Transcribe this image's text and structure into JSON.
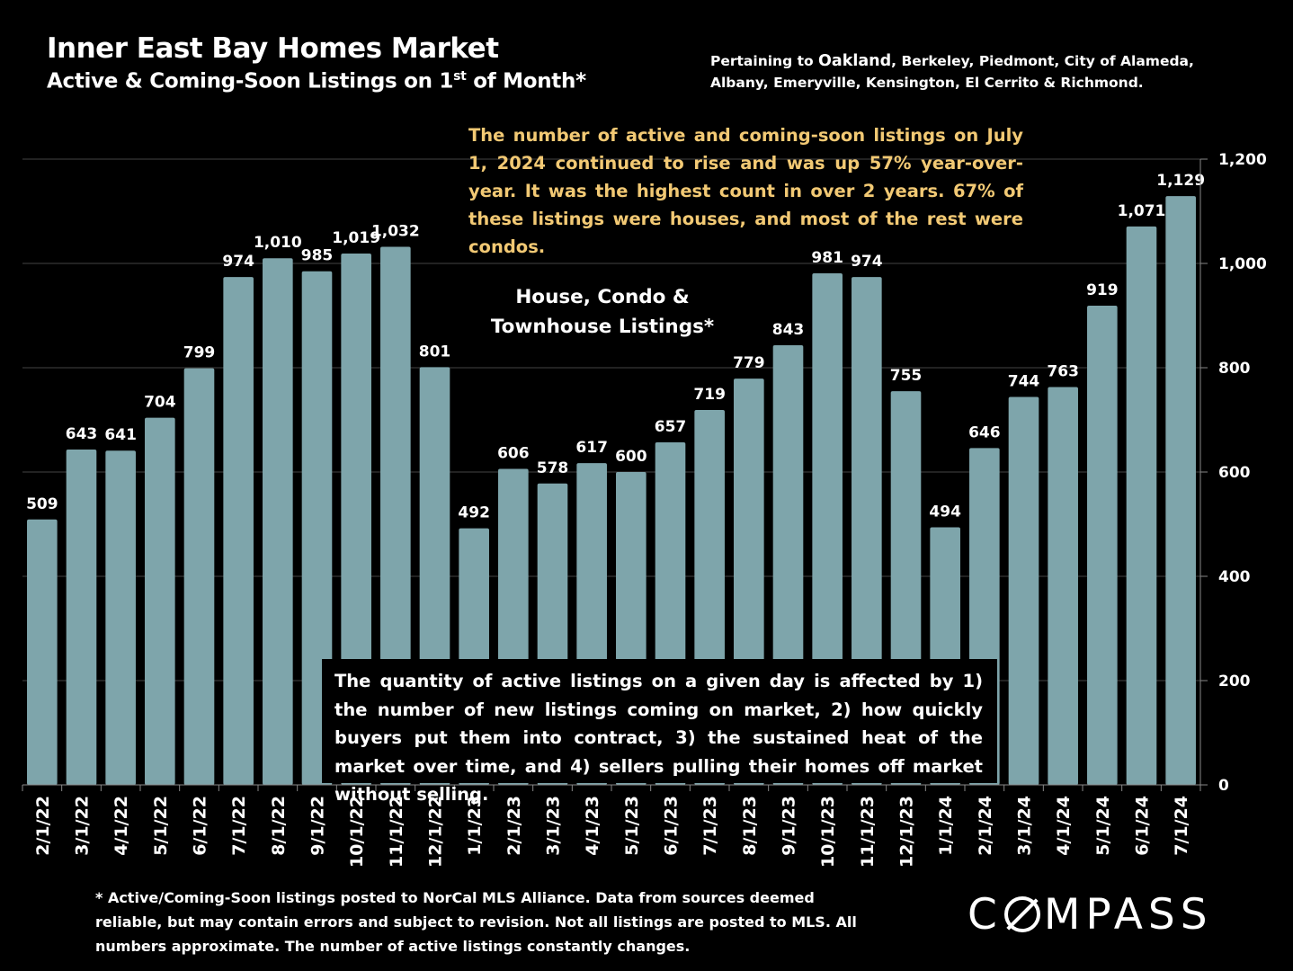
{
  "header": {
    "title": "Inner East Bay Homes Market",
    "subtitle_main": "Active & Coming-Soon Listings on 1",
    "subtitle_sup": "st",
    "subtitle_end": " of Month*",
    "region_prefix": "Pertaining to ",
    "region_city": "Oakland",
    "region_rest": ", Berkeley, Piedmont, City of Alameda, Albany, Emeryville, Kensington, El Cerrito & Richmond."
  },
  "callout": "The number of active and coming-soon listings on July 1, 2024 continued to rise and was up 57% year-over-year. It was the highest count in over 2 years. 67% of these listings were houses, and most of the rest were condos.",
  "series_label_line1": "House, Condo &",
  "series_label_line2": "Townhouse Listings*",
  "note": "The quantity of active listings on a given day is affected by 1) the number of new listings coming on market, 2) how quickly buyers put them into contract, 3) the sustained heat of the market over time, and 4) sellers pulling their homes off market without selling.",
  "footnote": "* Active/Coming-Soon listings posted to NorCal MLS Alliance.  Data from sources deemed reliable, but may contain errors and subject to revision.  Not all listings are posted to MLS. All numbers approximate. The number of active listings constantly changes.",
  "logo": {
    "before": "C",
    "after": "MPASS"
  },
  "colors": {
    "background": "#000000",
    "bar": "#7ea5ab",
    "callout": "#f2c974",
    "text": "#ffffff"
  },
  "chart_data": {
    "type": "bar",
    "categories": [
      "2/1/22",
      "3/1/22",
      "4/1/22",
      "5/1/22",
      "6/1/22",
      "7/1/22",
      "8/1/22",
      "9/1/22",
      "10/1/22",
      "11/1/22",
      "12/1/22",
      "1/1/23",
      "2/1/23",
      "3/1/23",
      "4/1/23",
      "5/1/23",
      "6/1/23",
      "7/1/23",
      "8/1/23",
      "9/1/23",
      "10/1/23",
      "11/1/23",
      "12/1/23",
      "1/1/24",
      "2/1/24",
      "3/1/24",
      "4/1/24",
      "5/1/24",
      "6/1/24",
      "7/1/24"
    ],
    "values": [
      509,
      643,
      641,
      704,
      799,
      974,
      1010,
      985,
      1019,
      1032,
      801,
      492,
      606,
      578,
      617,
      600,
      657,
      719,
      779,
      843,
      981,
      974,
      755,
      494,
      646,
      744,
      763,
      919,
      1071,
      1129
    ],
    "value_labels": [
      "509",
      "643",
      "641",
      "704",
      "799",
      "974",
      "1,010",
      "985",
      "1,019",
      "1,032",
      "801",
      "492",
      "606",
      "578",
      "617",
      "600",
      "657",
      "719",
      "779",
      "843",
      "981",
      "974",
      "755",
      "494",
      "646",
      "744",
      "763",
      "919",
      "1,071",
      "1,129"
    ],
    "ylim": [
      0,
      1200
    ],
    "yticks": [
      0,
      200,
      400,
      600,
      800,
      1000,
      1200
    ],
    "ytick_labels": [
      "0",
      "200",
      "400",
      "600",
      "800",
      "1,000",
      "1,200"
    ],
    "y_axis_side": "right",
    "grid": true,
    "legend": "none"
  }
}
